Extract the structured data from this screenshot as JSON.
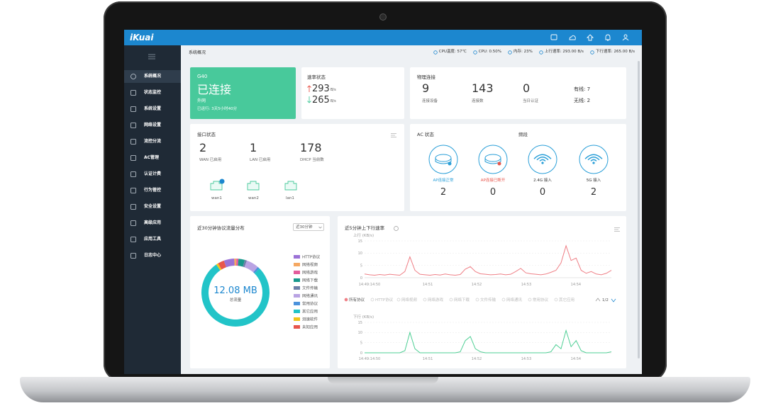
{
  "topbar": {
    "logo": "iKuai"
  },
  "sidebar": {
    "menu": [
      "系统概况",
      "状态监控",
      "系统设置",
      "网络设置",
      "流控分流",
      "AC管理",
      "认证计费",
      "行为管控",
      "安全设置",
      "高级应用",
      "应用工具",
      "日志中心"
    ]
  },
  "breadcrumb": "系统概况",
  "status": [
    "CPU温度: 57℃",
    "CPU: 0.50%",
    "内存: 23%",
    "上行速率: 293.00 B/s",
    "下行速率: 265.00 B/s"
  ],
  "device": {
    "model": "G40",
    "state": "已连接",
    "network": "外网",
    "uptime": "已运行: 3天5小时40分"
  },
  "rate": {
    "title": "速率状态",
    "up": 293,
    "up_unit": "B/s",
    "down": 265,
    "down_unit": "B/s"
  },
  "physical": {
    "title": "物理连接",
    "stats": [
      {
        "value": 9,
        "label": "连接设备"
      },
      {
        "value": 143,
        "label": "连接数"
      },
      {
        "value": 0,
        "label": "当日认证"
      }
    ],
    "wired": "有线: 7",
    "wireless": "无线: 2"
  },
  "interfaces": {
    "title": "接口状态",
    "stats": [
      {
        "value": 2,
        "label": "WAN 已启用"
      },
      {
        "value": 1,
        "label": "LAN 已启用"
      },
      {
        "value": 178,
        "label": "DHCP 当前数"
      }
    ],
    "ports": [
      "wan1",
      "wan2",
      "lan1"
    ]
  },
  "ac": {
    "title": "AC 状态",
    "band_title": "频段",
    "items": [
      {
        "label": "AP连接正常",
        "value": 2
      },
      {
        "label": "AP连接已断开",
        "value": 0
      },
      {
        "label": "2.4G 接入",
        "value": 0
      },
      {
        "label": "5G 接入",
        "value": 2
      }
    ]
  },
  "protocol": {
    "title": "近30分钟协议流量分布",
    "range": "近30分钟",
    "chart": {
      "type": "donut",
      "categories": [
        "HTTP协议",
        "网络视频",
        "网络游戏",
        "网络下载",
        "文件传输",
        "网络通讯",
        "常用协议",
        "其它应用",
        "测速软件",
        "未知应用"
      ],
      "values": [
        5,
        1,
        1,
        3,
        1,
        6,
        1,
        78,
        1,
        3
      ],
      "colors": [
        "#9b72d6",
        "#f5a862",
        "#e35d9c",
        "#17988c",
        "#6d80a8",
        "#b9a3e3",
        "#4b92dc",
        "#22c4c8",
        "#f0c41b",
        "#e8564c"
      ],
      "center_value": "12.08 MB",
      "center_label": "总流量"
    }
  },
  "speed": {
    "title": "近5分钟上下行速率",
    "upload": {
      "type": "line",
      "axis_label": "上行 (KB/s)",
      "color": "#ef7f86",
      "values": [
        1.5,
        1.2,
        1.0,
        1.3,
        1.1,
        1.4,
        1.2,
        1.0,
        2.5,
        8.5,
        3,
        1.4,
        1.2,
        1.0,
        1.3,
        1.1,
        1.5,
        1.2,
        1.0,
        1.3,
        3.5,
        4.5,
        2.5,
        1.6,
        1.4,
        1.2,
        1.3,
        1.5,
        1.2,
        1.4,
        2.5,
        3.8,
        2.0,
        1.6,
        1.4,
        1.2,
        1.5,
        2.2,
        3.0,
        6,
        13,
        7,
        8,
        3,
        1.8,
        2.5,
        1.5,
        1.2,
        1.8,
        3
      ],
      "ylim": [
        0,
        15
      ],
      "yticks": [
        0,
        5,
        10,
        15
      ],
      "x_labels": [
        "14:49:14:50",
        "14:51",
        "14:52",
        "14:53",
        "14:54"
      ]
    },
    "legend": [
      "所有协议",
      "HTTP协议",
      "网络视频",
      "网络游戏",
      "网络下载",
      "文件传输",
      "网络通讯",
      "常用协议",
      "其它应用"
    ],
    "page": "1/2",
    "download": {
      "type": "line",
      "axis_label": "下行 (KB/s)",
      "color": "#4fcf95",
      "values": [
        0,
        0,
        0,
        0,
        0,
        0,
        0,
        0,
        1,
        10,
        2,
        0,
        0,
        0,
        0,
        0,
        0,
        0,
        0,
        0.5,
        6,
        8,
        2,
        0.5,
        0,
        0,
        0,
        0,
        0,
        0,
        0,
        0,
        0,
        0,
        0,
        0,
        0,
        0.5,
        4,
        2,
        11,
        3,
        6,
        1,
        0,
        0,
        0,
        0,
        0,
        0.5
      ],
      "ylim": [
        0,
        15
      ],
      "yticks": [
        0,
        5,
        10,
        15
      ],
      "x_labels": [
        "14:49:14:50",
        "14:51",
        "14:52",
        "14:53",
        "14:54"
      ]
    }
  }
}
